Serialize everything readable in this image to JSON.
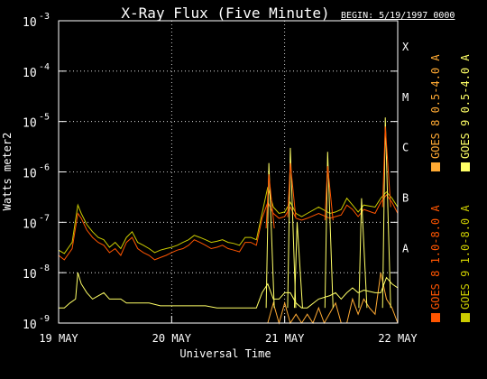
{
  "chart_data": {
    "type": "line",
    "title": "X-Ray Flux (Five Minute)",
    "begin_label": "BEGIN: 5/19/1997 0000",
    "ylabel": "Watts meter2",
    "xlabel": "Universal Time",
    "y_scale": "log",
    "ylim": [
      1e-09,
      0.001
    ],
    "y_ticks": [
      {
        "base": "10",
        "exp": "-9"
      },
      {
        "base": "10",
        "exp": "-8"
      },
      {
        "base": "10",
        "exp": "-7"
      },
      {
        "base": "10",
        "exp": "-6"
      },
      {
        "base": "10",
        "exp": "-5"
      },
      {
        "base": "10",
        "exp": "-4"
      },
      {
        "base": "10",
        "exp": "-3"
      }
    ],
    "x_ticks": [
      "19 MAY",
      "20 MAY",
      "21 MAY",
      "22 MAY"
    ],
    "x_units": "days since 1997-05-19 00:00 UT",
    "flare_classes": [
      "A",
      "B",
      "C",
      "M",
      "X"
    ],
    "grid": true,
    "legend_placement": "right, vertical",
    "series": [
      {
        "name": "GOES 8 1.0-8.0 A",
        "color": "#ff5500",
        "x": [
          0.0,
          0.05,
          0.12,
          0.17,
          0.2,
          0.25,
          0.3,
          0.35,
          0.4,
          0.45,
          0.5,
          0.55,
          0.6,
          0.65,
          0.7,
          0.75,
          0.8,
          0.85,
          0.9,
          0.95,
          1.0,
          1.05,
          1.1,
          1.15,
          1.2,
          1.25,
          1.3,
          1.35,
          1.4,
          1.45,
          1.5,
          1.55,
          1.6,
          1.65,
          1.7,
          1.75,
          1.8,
          1.85,
          1.9,
          1.95,
          2.0,
          2.05,
          2.1,
          2.15,
          2.2,
          2.3,
          2.4,
          2.45,
          2.5,
          2.55,
          2.6,
          2.65,
          2.7,
          2.8,
          2.85,
          2.9,
          2.95,
          3.0
        ],
        "y": [
          2.2e-08,
          1.8e-08,
          3e-08,
          1.5e-07,
          1.2e-07,
          7e-08,
          5e-08,
          4e-08,
          3.5e-08,
          2.5e-08,
          3e-08,
          2.2e-08,
          4e-08,
          5e-08,
          3e-08,
          2.5e-08,
          2.2e-08,
          1.8e-08,
          2e-08,
          2.2e-08,
          2.5e-08,
          2.8e-08,
          3e-08,
          3.5e-08,
          4.5e-08,
          4e-08,
          3.5e-08,
          3e-08,
          3.2e-08,
          3.5e-08,
          3e-08,
          2.8e-08,
          2.6e-08,
          4e-08,
          4e-08,
          3.5e-08,
          1.2e-07,
          2.5e-07,
          1.5e-07,
          1.2e-07,
          1.3e-07,
          2e-07,
          1.2e-07,
          1.1e-07,
          1.2e-07,
          1.5e-07,
          1.2e-07,
          1.3e-07,
          1.4e-07,
          2.2e-07,
          1.8e-07,
          1.3e-07,
          1.8e-07,
          1.5e-07,
          2.5e-07,
          3.5e-07,
          2.5e-07,
          1.5e-07
        ]
      },
      {
        "name": "GOES 8 0.5-4.0 A",
        "color": "#ffaa33",
        "x": [
          0.0,
          0.3,
          0.33,
          0.36,
          0.4,
          0.6,
          1.0,
          1.5,
          1.7,
          1.75,
          1.85,
          1.9,
          1.95,
          2.0,
          2.05,
          2.1,
          2.15,
          2.2,
          2.25,
          2.3,
          2.35,
          2.45,
          2.5,
          2.55,
          2.6,
          2.65,
          2.7,
          2.75,
          2.8,
          2.85,
          2.9,
          2.95,
          3.0
        ],
        "y": [
          1e-09,
          1e-09,
          1e-09,
          1e-09,
          1e-09,
          1e-09,
          1e-09,
          1e-09,
          1e-09,
          1e-09,
          1e-09,
          2.5e-09,
          1e-09,
          2.5e-09,
          1e-09,
          1.5e-09,
          1e-09,
          1.5e-09,
          1e-09,
          2e-09,
          1e-09,
          2.5e-09,
          1e-09,
          1e-09,
          3e-09,
          1.5e-09,
          3e-09,
          2e-09,
          1.5e-09,
          1e-08,
          3e-09,
          2e-09,
          1e-09
        ]
      },
      {
        "name": "GOES 9 1.0-8.0 A",
        "color": "#cccc00",
        "x": [
          0.0,
          0.05,
          0.12,
          0.17,
          0.2,
          0.25,
          0.3,
          0.35,
          0.4,
          0.45,
          0.5,
          0.55,
          0.6,
          0.65,
          0.7,
          0.75,
          0.8,
          0.85,
          0.9,
          0.95,
          1.0,
          1.05,
          1.1,
          1.15,
          1.2,
          1.25,
          1.3,
          1.35,
          1.4,
          1.45,
          1.5,
          1.55,
          1.6,
          1.65,
          1.7,
          1.75,
          1.8,
          1.85,
          1.9,
          1.95,
          2.0,
          2.05,
          2.1,
          2.15,
          2.2,
          2.3,
          2.4,
          2.45,
          2.5,
          2.55,
          2.6,
          2.65,
          2.7,
          2.8,
          2.85,
          2.9,
          2.95,
          3.0
        ],
        "y": [
          2.8e-08,
          2.4e-08,
          4e-08,
          2.2e-07,
          1.5e-07,
          9e-08,
          6.5e-08,
          5e-08,
          4.5e-08,
          3.2e-08,
          4e-08,
          3e-08,
          5e-08,
          6.5e-08,
          4e-08,
          3.5e-08,
          3e-08,
          2.5e-08,
          2.8e-08,
          3e-08,
          3.2e-08,
          3.5e-08,
          4e-08,
          4.5e-08,
          5.5e-08,
          5e-08,
          4.5e-08,
          4e-08,
          4.2e-08,
          4.5e-08,
          4e-08,
          3.8e-08,
          3.5e-08,
          5e-08,
          5e-08,
          4.5e-08,
          1.5e-07,
          5e-07,
          2e-07,
          1.5e-07,
          1.6e-07,
          2.5e-07,
          1.5e-07,
          1.3e-07,
          1.5e-07,
          2e-07,
          1.5e-07,
          1.6e-07,
          1.8e-07,
          3e-07,
          2.2e-07,
          1.6e-07,
          2.2e-07,
          2e-07,
          3e-07,
          4e-07,
          3e-07,
          2e-07
        ]
      },
      {
        "name": "GOES 9 0.5-4.0 A",
        "color": "#ffff66",
        "x": [
          0.0,
          0.05,
          0.1,
          0.15,
          0.17,
          0.2,
          0.25,
          0.3,
          0.4,
          0.45,
          0.5,
          0.55,
          0.6,
          0.7,
          0.8,
          0.9,
          1.0,
          1.1,
          1.2,
          1.3,
          1.4,
          1.5,
          1.6,
          1.7,
          1.75,
          1.8,
          1.85,
          1.9,
          1.95,
          2.0,
          2.05,
          2.1,
          2.15,
          2.2,
          2.3,
          2.4,
          2.45,
          2.5,
          2.55,
          2.6,
          2.65,
          2.7,
          2.8,
          2.85,
          2.9,
          2.95,
          3.0
        ],
        "y": [
          2e-09,
          2e-09,
          2.5e-09,
          3e-09,
          1e-08,
          6e-09,
          4e-09,
          3e-09,
          4e-09,
          3e-09,
          3e-09,
          3e-09,
          2.5e-09,
          2.5e-09,
          2.5e-09,
          2.2e-09,
          2.2e-09,
          2.2e-09,
          2.2e-09,
          2.2e-09,
          2e-09,
          2e-09,
          2e-09,
          2e-09,
          2e-09,
          4e-09,
          6e-09,
          3e-09,
          3e-09,
          4e-09,
          4e-09,
          2.5e-09,
          2e-09,
          2e-09,
          3e-09,
          3.5e-09,
          4e-09,
          3e-09,
          4e-09,
          5e-09,
          4e-09,
          4.5e-09,
          4e-09,
          4e-09,
          8e-09,
          6e-09,
          5e-09
        ]
      }
    ],
    "spikes": [
      {
        "series": 3,
        "x": 1.86,
        "y": 1.5e-06
      },
      {
        "series": 3,
        "x": 2.05,
        "y": 3e-06
      },
      {
        "series": 3,
        "x": 2.11,
        "y": 1e-07
      },
      {
        "series": 3,
        "x": 2.38,
        "y": 2.5e-06
      },
      {
        "series": 3,
        "x": 2.68,
        "y": 3e-07
      },
      {
        "series": 3,
        "x": 2.89,
        "y": 1.2e-05
      },
      {
        "series": 0,
        "x": 1.86,
        "y": 9e-07
      },
      {
        "series": 0,
        "x": 2.05,
        "y": 1.5e-06
      },
      {
        "series": 0,
        "x": 2.38,
        "y": 1.3e-06
      },
      {
        "series": 0,
        "x": 2.89,
        "y": 8e-06
      }
    ]
  }
}
